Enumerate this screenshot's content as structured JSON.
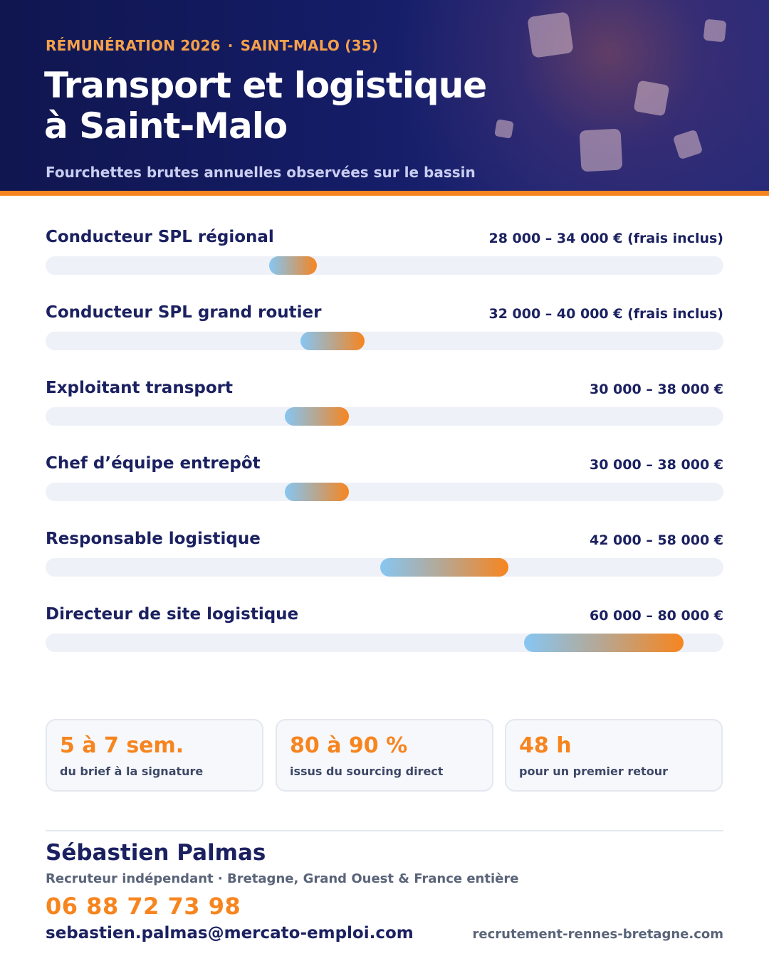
{
  "header": {
    "eyebrow_left": "RÉMUNÉRATION 2026",
    "eyebrow_sep": "·",
    "eyebrow_right": "SAINT-MALO (35)",
    "title_line1": "Transport et logistique",
    "title_line2": "à Saint-Malo",
    "subtitle": "Fourchettes brutes annuelles observées sur le bassin",
    "accent_color": "#f7851f",
    "background_color": "#131a5e"
  },
  "chart_data": {
    "type": "range-bar",
    "xlim": [
      0,
      85000
    ],
    "grid": false,
    "series": [
      {
        "label": "Conducteur SPL régional",
        "min": 28000,
        "max": 34000,
        "value_text": "28 000 – 34 000 € (frais inclus)"
      },
      {
        "label": "Conducteur SPL grand routier",
        "min": 32000,
        "max": 40000,
        "value_text": "32 000 – 40 000 € (frais inclus)"
      },
      {
        "label": "Exploitant transport",
        "min": 30000,
        "max": 38000,
        "value_text": "30 000 – 38 000 €"
      },
      {
        "label": "Chef d’équipe entrepôt",
        "min": 30000,
        "max": 38000,
        "value_text": "30 000 – 38 000 €"
      },
      {
        "label": "Responsable logistique",
        "min": 42000,
        "max": 58000,
        "value_text": "42 000 – 58 000 €"
      },
      {
        "label": "Directeur de site logistique",
        "min": 60000,
        "max": 80000,
        "value_text": "60 000 – 80 000 €"
      }
    ],
    "bar_gradient": [
      "#86c6f3",
      "#f7851f"
    ],
    "track_color": "#eef1f7"
  },
  "stats": [
    {
      "value": "5 à 7 sem.",
      "caption": "du brief à la signature"
    },
    {
      "value": "80 à 90 %",
      "caption": "issus du sourcing direct"
    },
    {
      "value": "48 h",
      "caption": "pour un premier retour"
    }
  ],
  "contact": {
    "name": "Sébastien Palmas",
    "role": "Recruteur indépendant · Bretagne, Grand Ouest & France entière",
    "phone": "06 88 72 73 98",
    "email": "sebastien.palmas@mercato-emploi.com",
    "website": "recrutement-rennes-bretagne.com"
  }
}
